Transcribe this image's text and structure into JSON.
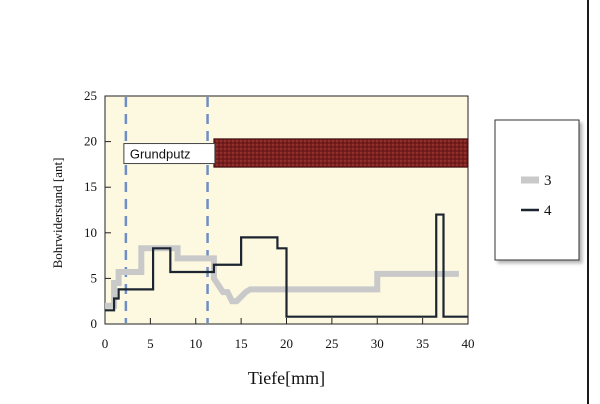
{
  "chart_data": {
    "type": "line",
    "title": "",
    "xlabel": "Tiefe[mm]",
    "ylabel": "Bohrwiderstand [ant]",
    "xlim": [
      0,
      40
    ],
    "ylim": [
      0,
      25
    ],
    "xticks": [
      "0",
      "5",
      "10",
      "15",
      "20",
      "25",
      "30",
      "35",
      "40"
    ],
    "yticks": [
      "0",
      "5",
      "10",
      "15",
      "20",
      "25"
    ],
    "grid": false,
    "legend_position": "right, outside plot",
    "vertical_markers_x": [
      2.3,
      11.3
    ],
    "annotations": [
      {
        "text": "Grundputz",
        "type": "label",
        "x": 2.3,
        "y": 18.8
      },
      {
        "text": "",
        "type": "band",
        "x_start": 12.0,
        "x_end": 40.0,
        "y_start": 17.2,
        "y_end": 20.3
      }
    ],
    "series": [
      {
        "name": "3",
        "color": "#c9c9c9",
        "x": [
          0,
          1,
          1,
          1.5,
          1.5,
          4,
          4,
          8,
          8,
          12,
          12,
          13,
          13.5,
          14,
          14.5,
          15.5,
          16,
          17,
          30,
          30,
          39
        ],
        "y": [
          2,
          2,
          4.5,
          4.5,
          5.7,
          5.7,
          8.3,
          8.3,
          7.2,
          7.2,
          5,
          3.5,
          3.5,
          2.5,
          2.5,
          3.5,
          3.8,
          3.8,
          3.8,
          5.5,
          5.5
        ]
      },
      {
        "name": "4",
        "color": "#1c2430",
        "x": [
          0,
          1,
          1,
          1.5,
          1.5,
          5.3,
          5.3,
          7.2,
          7.2,
          12,
          12,
          15,
          15,
          19,
          19,
          20,
          20,
          36.5,
          36.5,
          37.3,
          37.3,
          40
        ],
        "y": [
          1.5,
          1.5,
          2.8,
          2.8,
          3.8,
          3.8,
          8.3,
          8.3,
          5.7,
          5.7,
          6.5,
          6.5,
          9.5,
          9.5,
          8.3,
          8.3,
          0.8,
          0.8,
          12,
          12,
          0.8,
          0.8
        ]
      }
    ]
  },
  "colors": {
    "plot_background": "#fdf9e1",
    "band_fill": "#7a1f1f",
    "marker_line": "#6f8ec5"
  }
}
